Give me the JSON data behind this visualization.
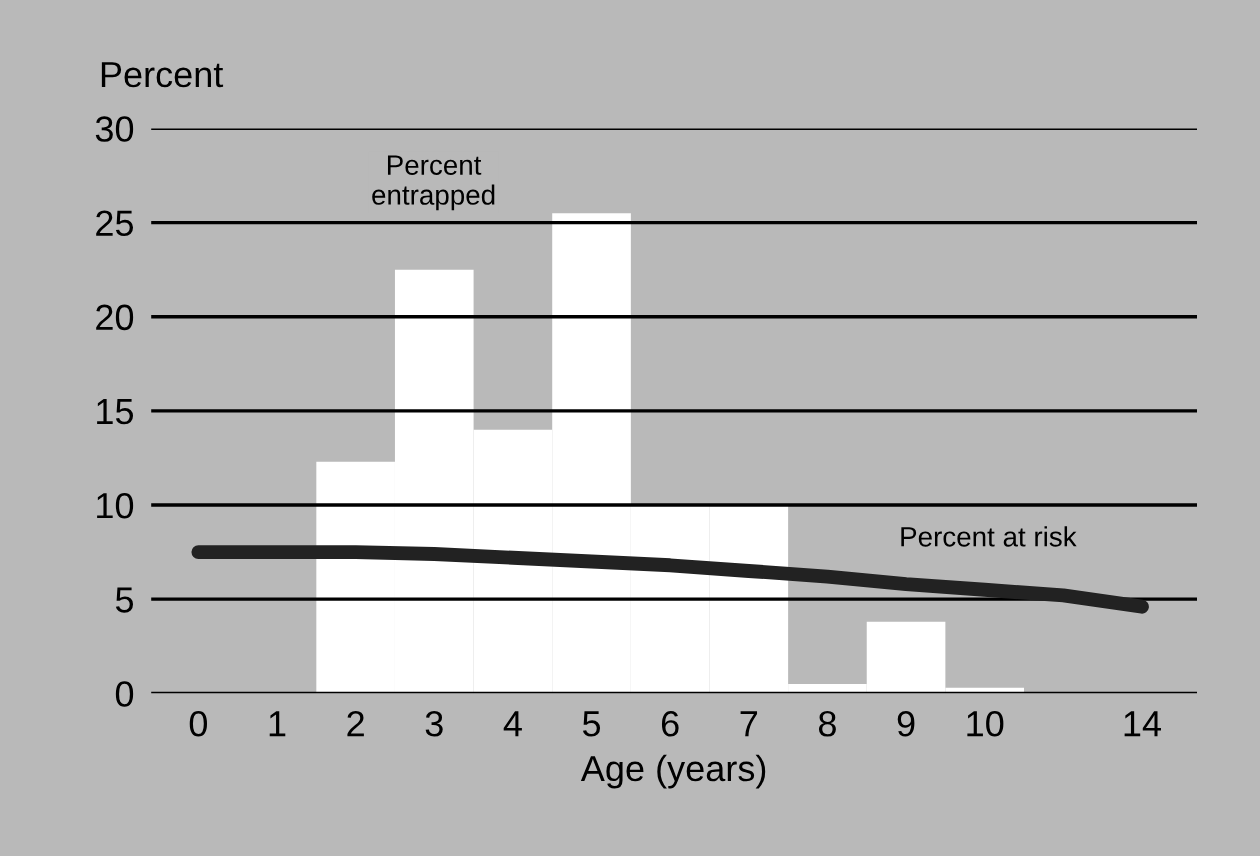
{
  "chart_data": {
    "type": "bar",
    "ylabel": "Percent",
    "xlabel": "Age (years)",
    "categories": [
      "0",
      "1",
      "2",
      "3",
      "4",
      "5",
      "6",
      "7",
      "8",
      "9",
      "10",
      null,
      "14"
    ],
    "series": [
      {
        "color": "#ffffff",
        "values": [
          0,
          0,
          12.3,
          22.5,
          14,
          25.5,
          10,
          10,
          0.5,
          3.8,
          0.3,
          null,
          null
        ]
      },
      {
        "type": "line",
        "color": "#222222",
        "values": [
          7.5,
          7.5,
          7.5,
          7.4,
          7.2,
          7.0,
          6.8,
          6.5,
          6.2,
          5.8,
          5.5,
          5.2,
          4.6
        ]
      }
    ],
    "annotations": [
      "Percent\nentrapped",
      "Percent at risk"
    ],
    "ylim": [
      0,
      30
    ],
    "yticks": [
      0,
      5,
      10,
      15,
      20,
      25,
      30
    ],
    "grid": "y",
    "legend": false
  }
}
